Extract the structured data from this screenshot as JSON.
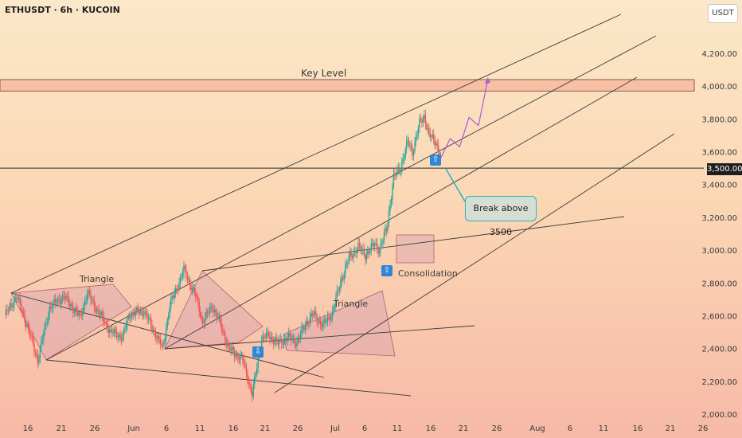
{
  "header": {
    "symbol_title": "ETHUSDT · 6h · KUCOIN"
  },
  "toolbar": {
    "currency_label": "USDT"
  },
  "chart_data": {
    "type": "candlestick",
    "symbol": "ETHUSDT",
    "timeframe": "6h",
    "exchange": "KUCOIN",
    "ylim": [
      2000,
      4300
    ],
    "y_ticks": [
      "4,200.00",
      "4,000.00",
      "3,800.00",
      "3,600.00",
      "3,400.00",
      "3,200.00",
      "3,000.00",
      "2,800.00",
      "2,600.00",
      "2,400.00",
      "2,200.00",
      "2,000.00"
    ],
    "y_tick_values": [
      4200,
      4000,
      3800,
      3600,
      3400,
      3200,
      3000,
      2800,
      2600,
      2400,
      2200,
      2000
    ],
    "x_ticks": [
      "16",
      "21",
      "26",
      "Jun",
      "6",
      "11",
      "16",
      "21",
      "26",
      "Jul",
      "6",
      "11",
      "16",
      "21",
      "26",
      "Aug",
      "6",
      "11",
      "16",
      "21",
      "26"
    ],
    "current_price_label": "3,500.00",
    "key_level_label": "Key Level",
    "key_level_zone": [
      3970,
      4040
    ],
    "horizontal_level": 3500,
    "colors": {
      "up": "#26a69a",
      "down": "#ef5350",
      "accent": "#26b3bf",
      "projection": "#b05ad2",
      "signal": "#2f86d6"
    },
    "annotations": {
      "triangle_1": "Triangle",
      "triangle_2": "Triangle",
      "consolidation": "Consolidation",
      "breakout": "Break above 3500"
    },
    "price_path": [
      [
        0,
        2600
      ],
      [
        10,
        2720
      ],
      [
        18,
        2560
      ],
      [
        28,
        2330
      ],
      [
        38,
        2650
      ],
      [
        50,
        2720
      ],
      [
        64,
        2590
      ],
      [
        70,
        2740
      ],
      [
        78,
        2640
      ],
      [
        90,
        2500
      ],
      [
        100,
        2470
      ],
      [
        106,
        2610
      ],
      [
        118,
        2630
      ],
      [
        134,
        2400
      ],
      [
        140,
        2660
      ],
      [
        152,
        2880
      ],
      [
        162,
        2720
      ],
      [
        168,
        2560
      ],
      [
        176,
        2660
      ],
      [
        182,
        2570
      ],
      [
        190,
        2400
      ],
      [
        202,
        2330
      ],
      [
        210,
        2120
      ],
      [
        218,
        2460
      ],
      [
        224,
        2480
      ],
      [
        232,
        2430
      ],
      [
        240,
        2470
      ],
      [
        248,
        2440
      ],
      [
        256,
        2560
      ],
      [
        262,
        2610
      ],
      [
        270,
        2540
      ],
      [
        278,
        2620
      ],
      [
        286,
        2830
      ],
      [
        292,
        2950
      ],
      [
        300,
        3020
      ],
      [
        306,
        2970
      ],
      [
        314,
        3040
      ],
      [
        318,
        3000
      ],
      [
        324,
        3130
      ],
      [
        330,
        3440
      ],
      [
        336,
        3510
      ],
      [
        342,
        3660
      ],
      [
        346,
        3600
      ],
      [
        352,
        3770
      ],
      [
        356,
        3820
      ],
      [
        360,
        3700
      ],
      [
        366,
        3660
      ],
      [
        370,
        3560
      ]
    ],
    "projection_path": [
      [
        370,
        3560
      ],
      [
        378,
        3680
      ],
      [
        386,
        3630
      ],
      [
        394,
        3810
      ],
      [
        402,
        3760
      ],
      [
        410,
        4040
      ]
    ]
  }
}
